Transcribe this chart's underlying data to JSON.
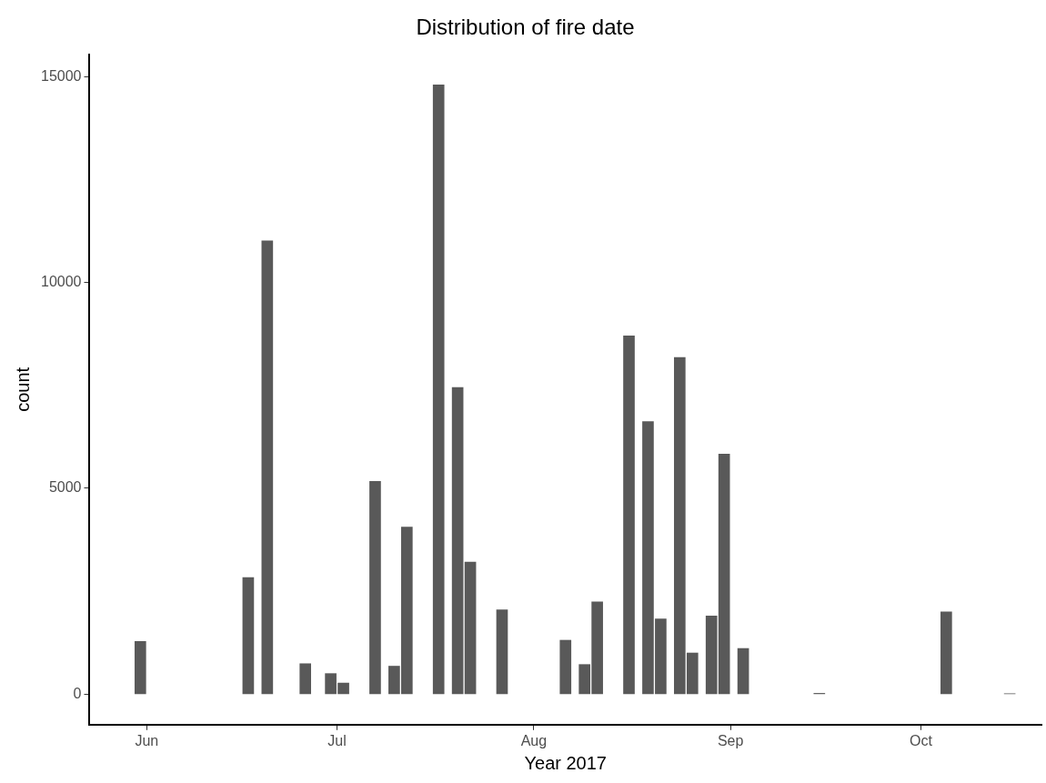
{
  "chart_data": {
    "type": "bar",
    "title": "Distribution of fire date",
    "xlabel": "Year 2017",
    "ylabel": "count",
    "x": [
      "2017-05-31",
      "2017-06-17",
      "2017-06-20",
      "2017-06-26",
      "2017-06-30",
      "2017-07-02",
      "2017-07-07",
      "2017-07-10",
      "2017-07-12",
      "2017-07-17",
      "2017-07-20",
      "2017-07-22",
      "2017-07-27",
      "2017-08-06",
      "2017-08-09",
      "2017-08-11",
      "2017-08-16",
      "2017-08-19",
      "2017-08-21",
      "2017-08-24",
      "2017-08-26",
      "2017-08-29",
      "2017-08-31",
      "2017-09-03",
      "2017-09-15",
      "2017-10-05",
      "2017-10-15"
    ],
    "values": [
      1280,
      2830,
      11010,
      740,
      500,
      270,
      5170,
      680,
      4060,
      14800,
      7450,
      3210,
      2050,
      1310,
      720,
      2240,
      8700,
      6620,
      1830,
      8180,
      1000,
      1900,
      5830,
      1110,
      20,
      2000,
      10
    ],
    "color": "#595959",
    "xlim": [
      "2017-05-23",
      "2017-10-20"
    ],
    "xticks": [
      {
        "value": "2017-06-01",
        "label": "Jun"
      },
      {
        "value": "2017-07-01",
        "label": "Jul"
      },
      {
        "value": "2017-08-01",
        "label": "Aug"
      },
      {
        "value": "2017-09-01",
        "label": "Sep"
      },
      {
        "value": "2017-10-01",
        "label": "Oct"
      }
    ],
    "ylim": [
      -740,
      15540
    ],
    "yticks": [
      0,
      5000,
      10000,
      15000
    ],
    "legend": false
  }
}
